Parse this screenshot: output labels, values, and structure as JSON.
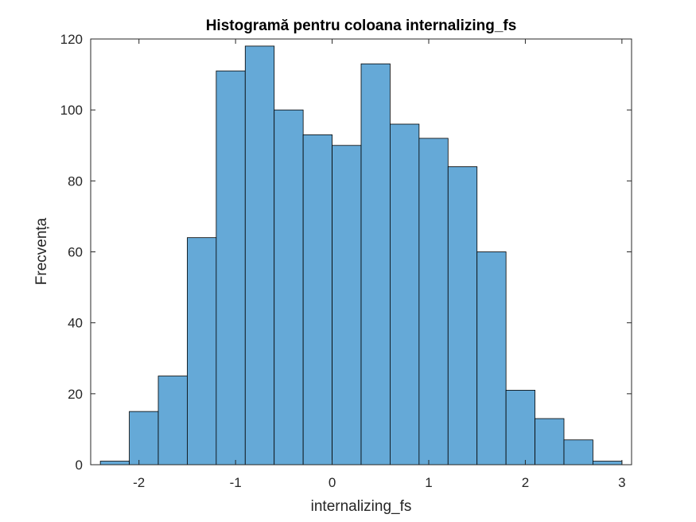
{
  "chart_data": {
    "type": "bar",
    "title": "Histogramă pentru coloana internalizing_fs",
    "xlabel": "internalizing_fs",
    "ylabel": "Frecvența",
    "xlim": [
      -2.5,
      3.1
    ],
    "ylim": [
      0,
      120
    ],
    "xticks": [
      -2,
      -1,
      0,
      1,
      2,
      3
    ],
    "yticks": [
      0,
      20,
      40,
      60,
      80,
      100,
      120
    ],
    "bin_edges": [
      -2.4,
      -2.1,
      -1.8,
      -1.5,
      -1.2,
      -0.9,
      -0.6,
      -0.3,
      0.0,
      0.3,
      0.6,
      0.9,
      1.2,
      1.5,
      1.8,
      2.1,
      2.4,
      2.7,
      3.0
    ],
    "values": [
      1,
      15,
      25,
      64,
      111,
      118,
      100,
      93,
      90,
      113,
      96,
      92,
      84,
      60,
      21,
      13,
      7,
      1
    ],
    "bar_color": "#65a9d7",
    "edge_color": "#000000",
    "grid": false,
    "legend": "none"
  }
}
